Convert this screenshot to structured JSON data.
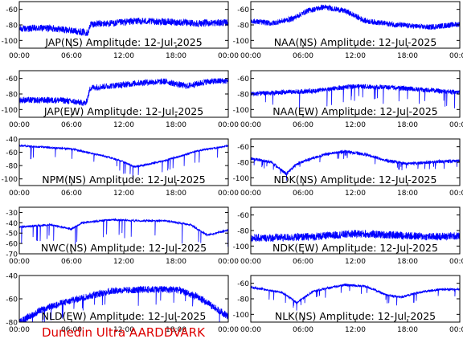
{
  "footer": {
    "text": "Dunedin Ultra AARDDVARK",
    "color": "#dd0000"
  },
  "colors": {
    "trace": "#0000ff",
    "axis": "#000000",
    "background": "#ffffff"
  },
  "x_tick_labels": [
    "00:00",
    "06:00",
    "12:00",
    "18:00",
    "00:00"
  ],
  "chart_data": [
    {
      "type": "line",
      "title": "JAP(NS) Amplitude: 12-Jul-2025",
      "x_ticks": [
        "00:00",
        "06:00",
        "12:00",
        "18:00",
        "00:00"
      ],
      "ylim": [
        -110,
        -50
      ],
      "y_ticks": [
        -60,
        -80,
        -100
      ],
      "profile": [
        [
          0,
          -85
        ],
        [
          0.15,
          -84
        ],
        [
          0.33,
          -90
        ],
        [
          0.34,
          -79
        ],
        [
          0.45,
          -78
        ],
        [
          0.55,
          -75
        ],
        [
          0.7,
          -76
        ],
        [
          0.85,
          -78
        ],
        [
          1,
          -77
        ]
      ],
      "noise": 9,
      "spike": 0
    },
    {
      "type": "line",
      "title": "NAA(NS) Amplitude: 12-Jul-2025",
      "x_ticks": [
        "00:00",
        "06:00",
        "12:00",
        "18:00",
        "00:00"
      ],
      "ylim": [
        -110,
        -50
      ],
      "y_ticks": [
        -60,
        -80,
        -100
      ],
      "profile": [
        [
          0,
          -75
        ],
        [
          0.1,
          -78
        ],
        [
          0.2,
          -72
        ],
        [
          0.27,
          -62
        ],
        [
          0.35,
          -57
        ],
        [
          0.45,
          -62
        ],
        [
          0.55,
          -75
        ],
        [
          0.7,
          -80
        ],
        [
          0.85,
          -83
        ],
        [
          1,
          -79
        ]
      ],
      "noise": 7,
      "spike": 0
    },
    {
      "type": "line",
      "title": "JAP(EW) Amplitude: 12-Jul-2025",
      "x_ticks": [
        "00:00",
        "06:00",
        "12:00",
        "18:00",
        "00:00"
      ],
      "ylim": [
        -110,
        -50
      ],
      "y_ticks": [
        -60,
        -80,
        -100
      ],
      "profile": [
        [
          0,
          -88
        ],
        [
          0.2,
          -88
        ],
        [
          0.32,
          -92
        ],
        [
          0.34,
          -72
        ],
        [
          0.5,
          -68
        ],
        [
          0.6,
          -65
        ],
        [
          0.7,
          -64
        ],
        [
          0.8,
          -70
        ],
        [
          0.9,
          -64
        ],
        [
          1,
          -63
        ]
      ],
      "noise": 8,
      "spike": 0
    },
    {
      "type": "line",
      "title": "NAA(EW) Amplitude: 12-Jul-2025",
      "x_ticks": [
        "00:00",
        "06:00",
        "12:00",
        "18:00",
        "00:00"
      ],
      "ylim": [
        -110,
        -50
      ],
      "y_ticks": [
        -60,
        -80,
        -100
      ],
      "profile": [
        [
          0,
          -80
        ],
        [
          0.3,
          -76
        ],
        [
          0.5,
          -70
        ],
        [
          0.7,
          -72
        ],
        [
          0.85,
          -75
        ],
        [
          1,
          -78
        ]
      ],
      "noise": 6,
      "spike": 22
    },
    {
      "type": "line",
      "title": "NPM(NS) Amplitude: 12-Jul-2025",
      "x_ticks": [
        "00:00",
        "06:00",
        "12:00",
        "18:00",
        "00:00"
      ],
      "ylim": [
        -110,
        -40
      ],
      "y_ticks": [
        -40,
        -60,
        -80,
        -100
      ],
      "profile": [
        [
          0,
          -50
        ],
        [
          0.25,
          -55
        ],
        [
          0.4,
          -65
        ],
        [
          0.48,
          -72
        ],
        [
          0.55,
          -82
        ],
        [
          0.62,
          -78
        ],
        [
          0.7,
          -72
        ],
        [
          0.78,
          -65
        ],
        [
          0.85,
          -58
        ],
        [
          1,
          -50
        ]
      ],
      "noise": 3,
      "spike": 20
    },
    {
      "type": "line",
      "title": "NDK(NS) Amplitude: 12-Jul-2025",
      "x_ticks": [
        "00:00",
        "06:00",
        "12:00",
        "18:00",
        "00:00"
      ],
      "ylim": [
        -110,
        -50
      ],
      "y_ticks": [
        -60,
        -80,
        -100
      ],
      "profile": [
        [
          0,
          -75
        ],
        [
          0.1,
          -80
        ],
        [
          0.17,
          -95
        ],
        [
          0.22,
          -82
        ],
        [
          0.35,
          -70
        ],
        [
          0.45,
          -66
        ],
        [
          0.55,
          -70
        ],
        [
          0.65,
          -78
        ],
        [
          0.75,
          -82
        ],
        [
          0.85,
          -80
        ],
        [
          1,
          -78
        ]
      ],
      "noise": 4,
      "spike": 10
    },
    {
      "type": "line",
      "title": "NWC(NS) Amplitude: 12-Jul-2025",
      "x_ticks": [
        "00:00",
        "06:00",
        "12:00",
        "18:00",
        "00:00"
      ],
      "ylim": [
        -70,
        -25
      ],
      "y_ticks": [
        -30,
        -40,
        -50,
        -60,
        -70
      ],
      "profile": [
        [
          0,
          -44
        ],
        [
          0.15,
          -42
        ],
        [
          0.25,
          -46
        ],
        [
          0.3,
          -40
        ],
        [
          0.45,
          -37
        ],
        [
          0.55,
          -38
        ],
        [
          0.7,
          -38
        ],
        [
          0.82,
          -42
        ],
        [
          0.9,
          -52
        ],
        [
          1,
          -47
        ]
      ],
      "noise": 2,
      "spike": 20
    },
    {
      "type": "line",
      "title": "NDK(EW) Amplitude: 12-Jul-2025",
      "x_ticks": [
        "00:00",
        "06:00",
        "12:00",
        "18:00",
        "00:00"
      ],
      "ylim": [
        -110,
        -50
      ],
      "y_ticks": [
        -60,
        -80,
        -100
      ],
      "profile": [
        [
          0,
          -90
        ],
        [
          0.3,
          -88
        ],
        [
          0.5,
          -84
        ],
        [
          0.7,
          -86
        ],
        [
          0.85,
          -88
        ],
        [
          1,
          -87
        ]
      ],
      "noise": 10,
      "spike": 0
    },
    {
      "type": "line",
      "title": "NLD(EW) Amplitude: 12-Jul-2025",
      "x_ticks": [
        "00:00",
        "06:00",
        "12:00",
        "18:00",
        "00:00"
      ],
      "ylim": [
        -80,
        -40
      ],
      "y_ticks": [
        -40,
        -60,
        -80
      ],
      "profile": [
        [
          0,
          -80
        ],
        [
          0.1,
          -70
        ],
        [
          0.2,
          -64
        ],
        [
          0.3,
          -59
        ],
        [
          0.45,
          -53
        ],
        [
          0.6,
          -52
        ],
        [
          0.75,
          -52
        ],
        [
          0.85,
          -58
        ],
        [
          0.92,
          -66
        ],
        [
          1,
          -75
        ]
      ],
      "noise": 6,
      "spike": 14
    },
    {
      "type": "line",
      "title": "NLK(NS) Amplitude: 12-Jul-2025",
      "x_ticks": [
        "00:00",
        "06:00",
        "12:00",
        "18:00",
        "00:00"
      ],
      "ylim": [
        -110,
        -50
      ],
      "y_ticks": [
        -60,
        -80,
        -100
      ],
      "profile": [
        [
          0,
          -65
        ],
        [
          0.15,
          -72
        ],
        [
          0.22,
          -85
        ],
        [
          0.3,
          -70
        ],
        [
          0.45,
          -62
        ],
        [
          0.55,
          -64
        ],
        [
          0.65,
          -75
        ],
        [
          0.72,
          -78
        ],
        [
          0.8,
          -72
        ],
        [
          0.9,
          -68
        ],
        [
          1,
          -68
        ]
      ],
      "noise": 3,
      "spike": 12
    }
  ]
}
